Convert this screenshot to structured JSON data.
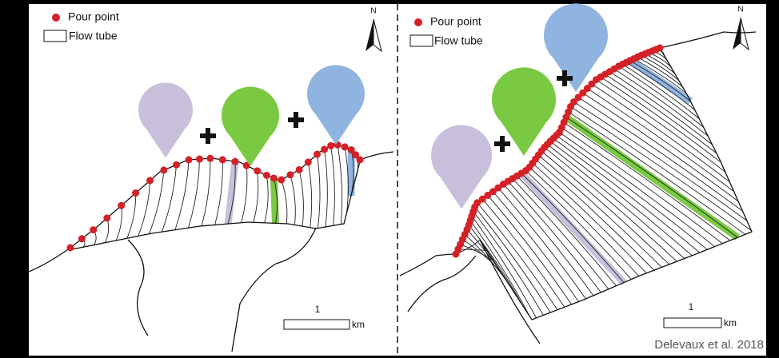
{
  "panels": [
    {
      "legend": {
        "pour_point": "Pour point",
        "flow_tube": "Flow tube"
      },
      "north": "N",
      "scale": {
        "value": 1,
        "unit": "km"
      }
    },
    {
      "legend": {
        "pour_point": "Pour point",
        "flow_tube": "Flow tube"
      },
      "north": "N",
      "scale": {
        "value": 1,
        "unit": "km"
      }
    }
  ],
  "credit": "Delevaux et al. 2018"
}
